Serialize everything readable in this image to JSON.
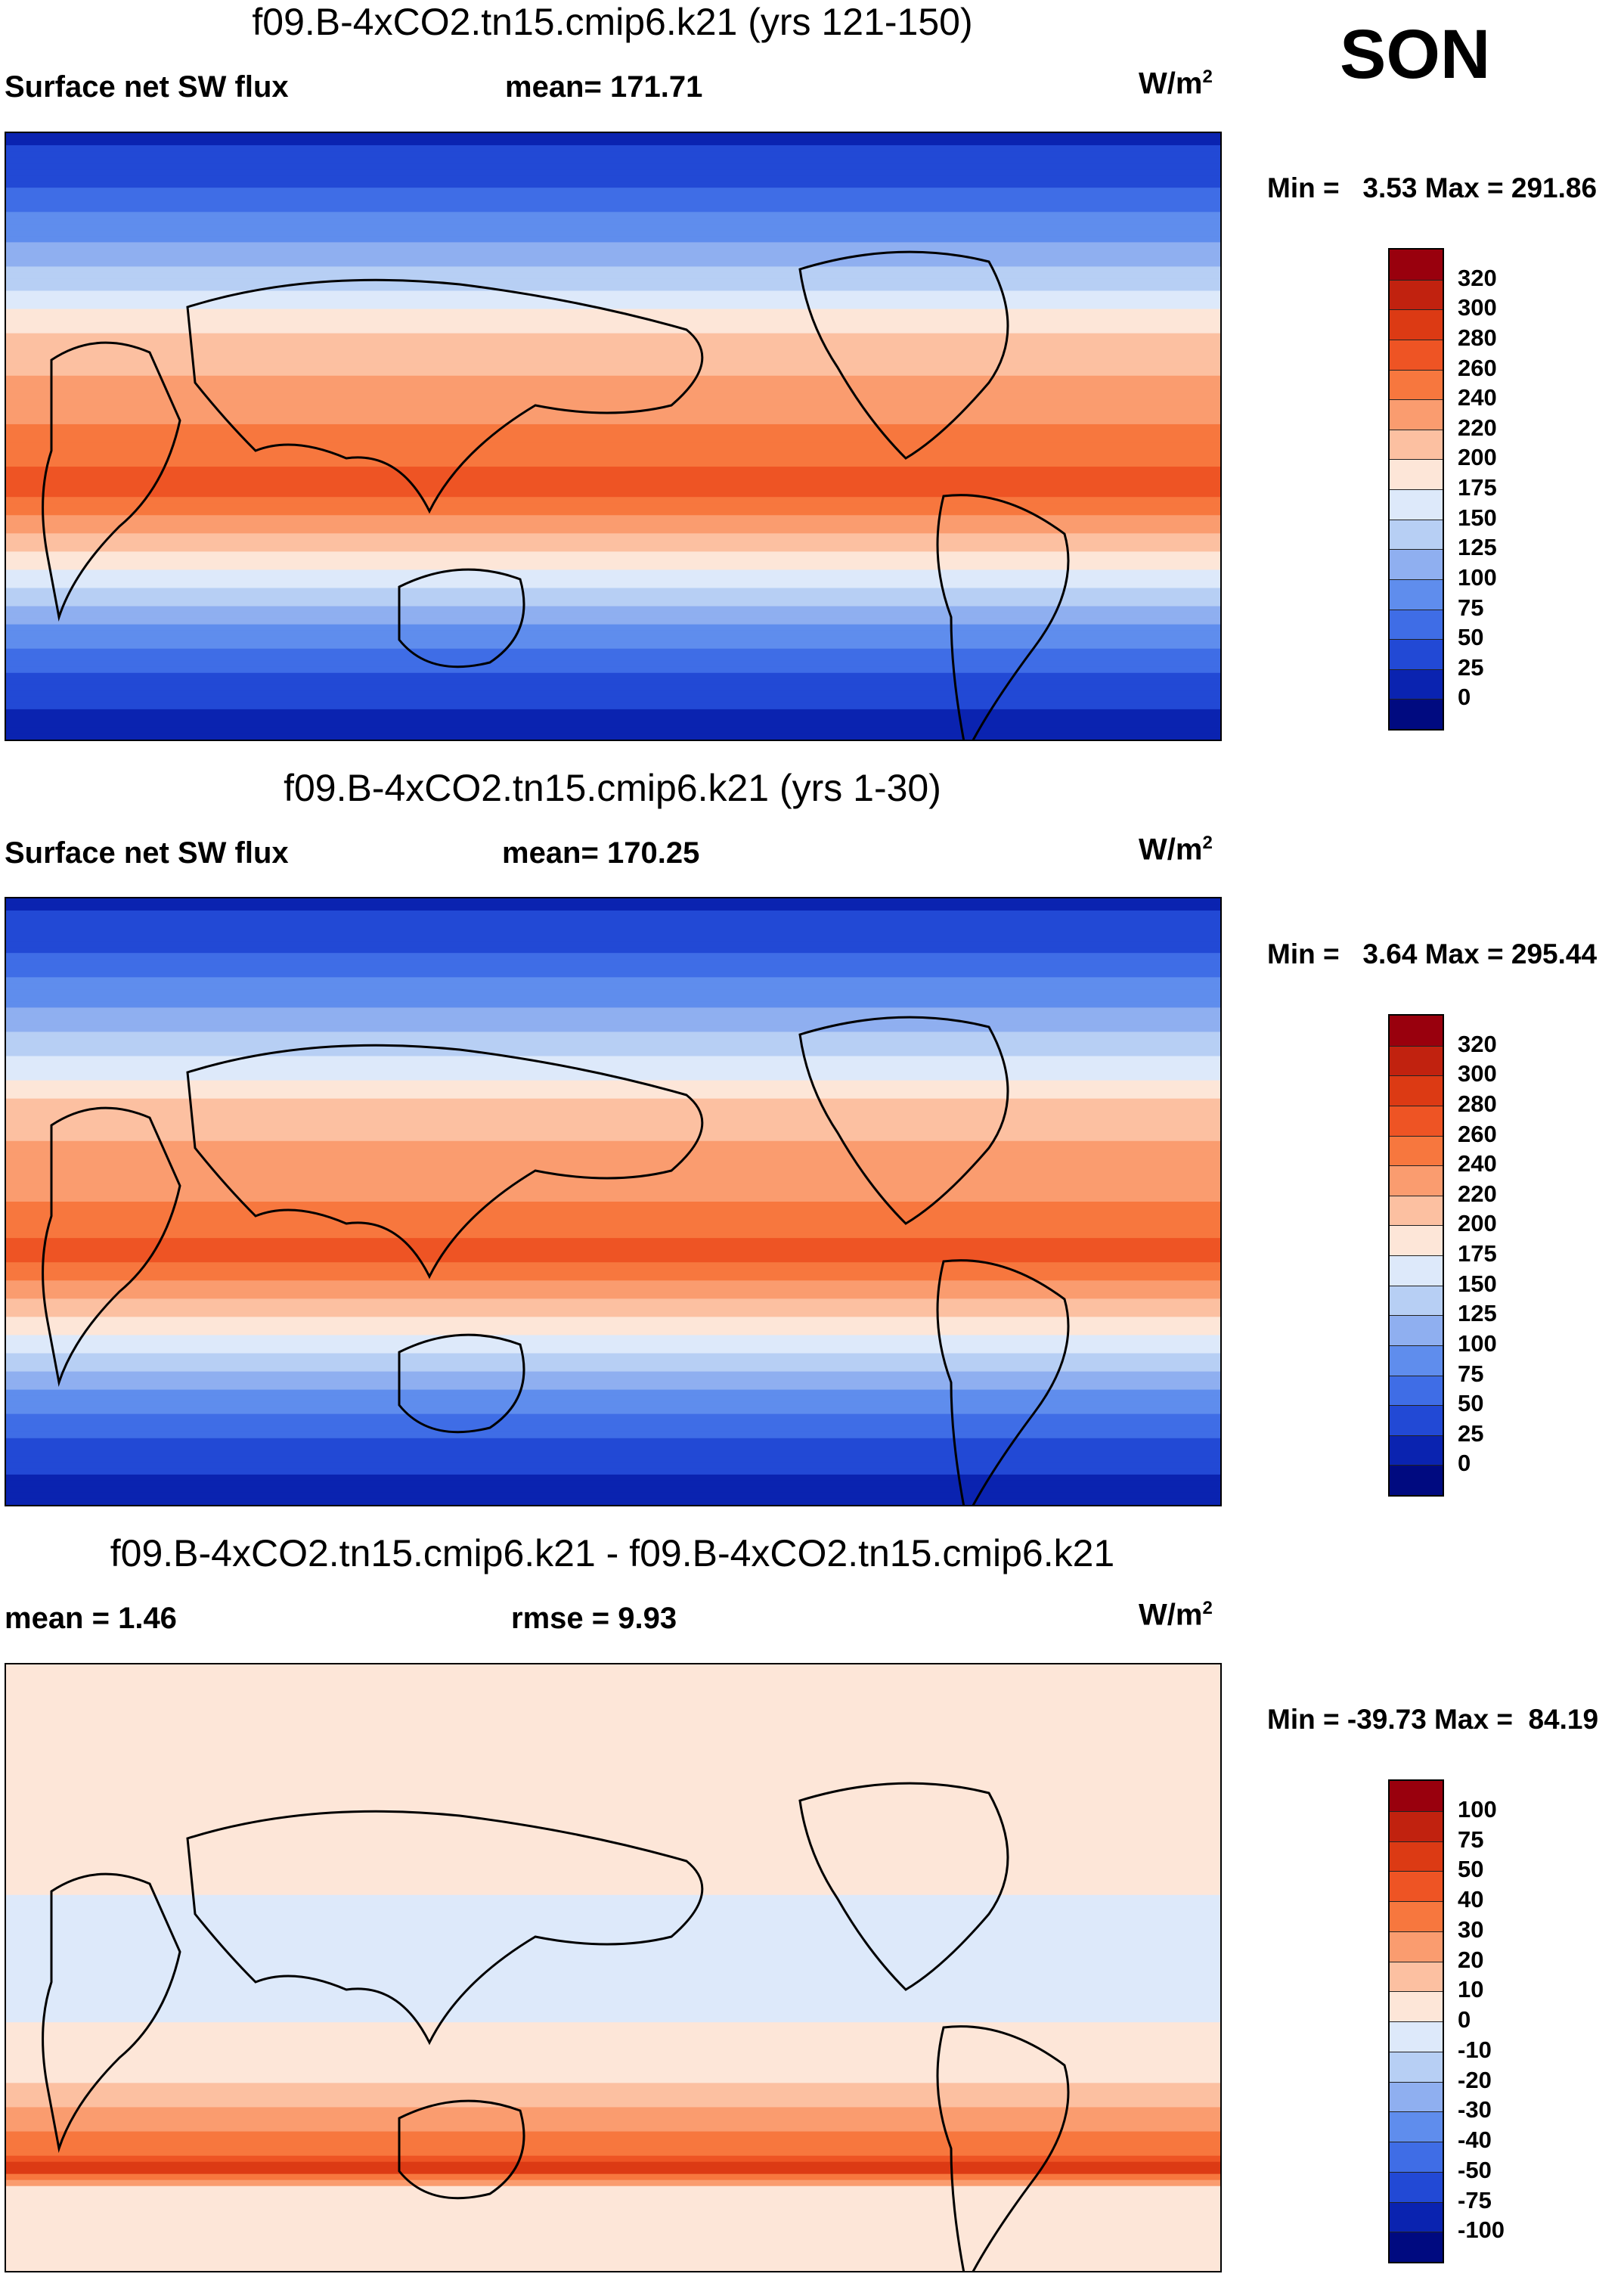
{
  "season": "SON",
  "chart_data": [
    {
      "type": "heatmap",
      "title": "f09.B-4xCO2.tn15.cmip6.k21 (yrs 121-150)",
      "variable": "Surface net SW flux",
      "mean_label": "mean= 171.71",
      "units_base": "W/m",
      "units_exp": "2",
      "minmax": "Min =   3.53 Max = 291.86",
      "min": 3.53,
      "max": 291.86,
      "mean": 171.71,
      "levels": [
        "320",
        "300",
        "280",
        "260",
        "240",
        "220",
        "200",
        "175",
        "150",
        "125",
        "100",
        "75",
        "50",
        "25",
        "0"
      ],
      "colors": [
        "#99000d",
        "#c1220f",
        "#dc3a14",
        "#ee5424",
        "#f7773e",
        "#fa9c6f",
        "#fcc0a1",
        "#fde6d8",
        "#dde9fa",
        "#b7cff4",
        "#8faff0",
        "#5f8ded",
        "#3f6de6",
        "#2249d5",
        "#0a23b0",
        "#000a80"
      ],
      "zonal_profile": [
        {
          "lat": 90,
          "value": 20
        },
        {
          "lat": 75,
          "value": 45
        },
        {
          "lat": 60,
          "value": 95
        },
        {
          "lat": 45,
          "value": 140
        },
        {
          "lat": 30,
          "value": 205
        },
        {
          "lat": 15,
          "value": 225
        },
        {
          "lat": 0,
          "value": 245
        },
        {
          "lat": -15,
          "value": 270
        },
        {
          "lat": -30,
          "value": 215
        },
        {
          "lat": -45,
          "value": 150
        },
        {
          "lat": -60,
          "value": 85
        },
        {
          "lat": -75,
          "value": 35
        },
        {
          "lat": -90,
          "value": 10
        }
      ]
    },
    {
      "type": "heatmap",
      "title": "f09.B-4xCO2.tn15.cmip6.k21 (yrs 1-30)",
      "variable": "Surface net SW flux",
      "mean_label": "mean= 170.25",
      "units_base": "W/m",
      "units_exp": "2",
      "minmax": "Min =   3.64 Max = 295.44",
      "min": 3.64,
      "max": 295.44,
      "mean": 170.25,
      "levels": [
        "320",
        "300",
        "280",
        "260",
        "240",
        "220",
        "200",
        "175",
        "150",
        "125",
        "100",
        "75",
        "50",
        "25",
        "0"
      ],
      "colors": [
        "#99000d",
        "#c1220f",
        "#dc3a14",
        "#ee5424",
        "#f7773e",
        "#fa9c6f",
        "#fcc0a1",
        "#fde6d8",
        "#dde9fa",
        "#b7cff4",
        "#8faff0",
        "#5f8ded",
        "#3f6de6",
        "#2249d5",
        "#0a23b0",
        "#000a80"
      ],
      "zonal_profile": [
        {
          "lat": 90,
          "value": 20
        },
        {
          "lat": 75,
          "value": 45
        },
        {
          "lat": 60,
          "value": 95
        },
        {
          "lat": 45,
          "value": 140
        },
        {
          "lat": 30,
          "value": 200
        },
        {
          "lat": 15,
          "value": 225
        },
        {
          "lat": 0,
          "value": 240
        },
        {
          "lat": -15,
          "value": 270
        },
        {
          "lat": -30,
          "value": 215
        },
        {
          "lat": -45,
          "value": 150
        },
        {
          "lat": -60,
          "value": 85
        },
        {
          "lat": -75,
          "value": 35
        },
        {
          "lat": -90,
          "value": 10
        }
      ]
    },
    {
      "type": "heatmap",
      "title": "f09.B-4xCO2.tn15.cmip6.k21 - f09.B-4xCO2.tn15.cmip6.k21",
      "mean_label": "mean =   1.46",
      "rmse_label": "rmse =   9.93",
      "units_base": "W/m",
      "units_exp": "2",
      "minmax": "Min = -39.73 Max =  84.19",
      "min": -39.73,
      "max": 84.19,
      "mean": 1.46,
      "rmse": 9.93,
      "levels": [
        "100",
        "75",
        "50",
        "40",
        "30",
        "20",
        "10",
        "0",
        "-10",
        "-20",
        "-30",
        "-40",
        "-50",
        "-75",
        "-100"
      ],
      "colors": [
        "#99000d",
        "#c1220f",
        "#dc3a14",
        "#ee5424",
        "#f7773e",
        "#fa9c6f",
        "#fcc0a1",
        "#fde6d8",
        "#dde9fa",
        "#b7cff4",
        "#8faff0",
        "#5f8ded",
        "#3f6de6",
        "#2249d5",
        "#0a23b0",
        "#000a80"
      ],
      "zonal_profile": [
        {
          "lat": 90,
          "value": 0
        },
        {
          "lat": 60,
          "value": 3
        },
        {
          "lat": 30,
          "value": 2
        },
        {
          "lat": 0,
          "value": -5
        },
        {
          "lat": -30,
          "value": 4
        },
        {
          "lat": -55,
          "value": 40
        },
        {
          "lat": -60,
          "value": 60
        },
        {
          "lat": -65,
          "value": 10
        },
        {
          "lat": -90,
          "value": 0
        }
      ]
    }
  ]
}
